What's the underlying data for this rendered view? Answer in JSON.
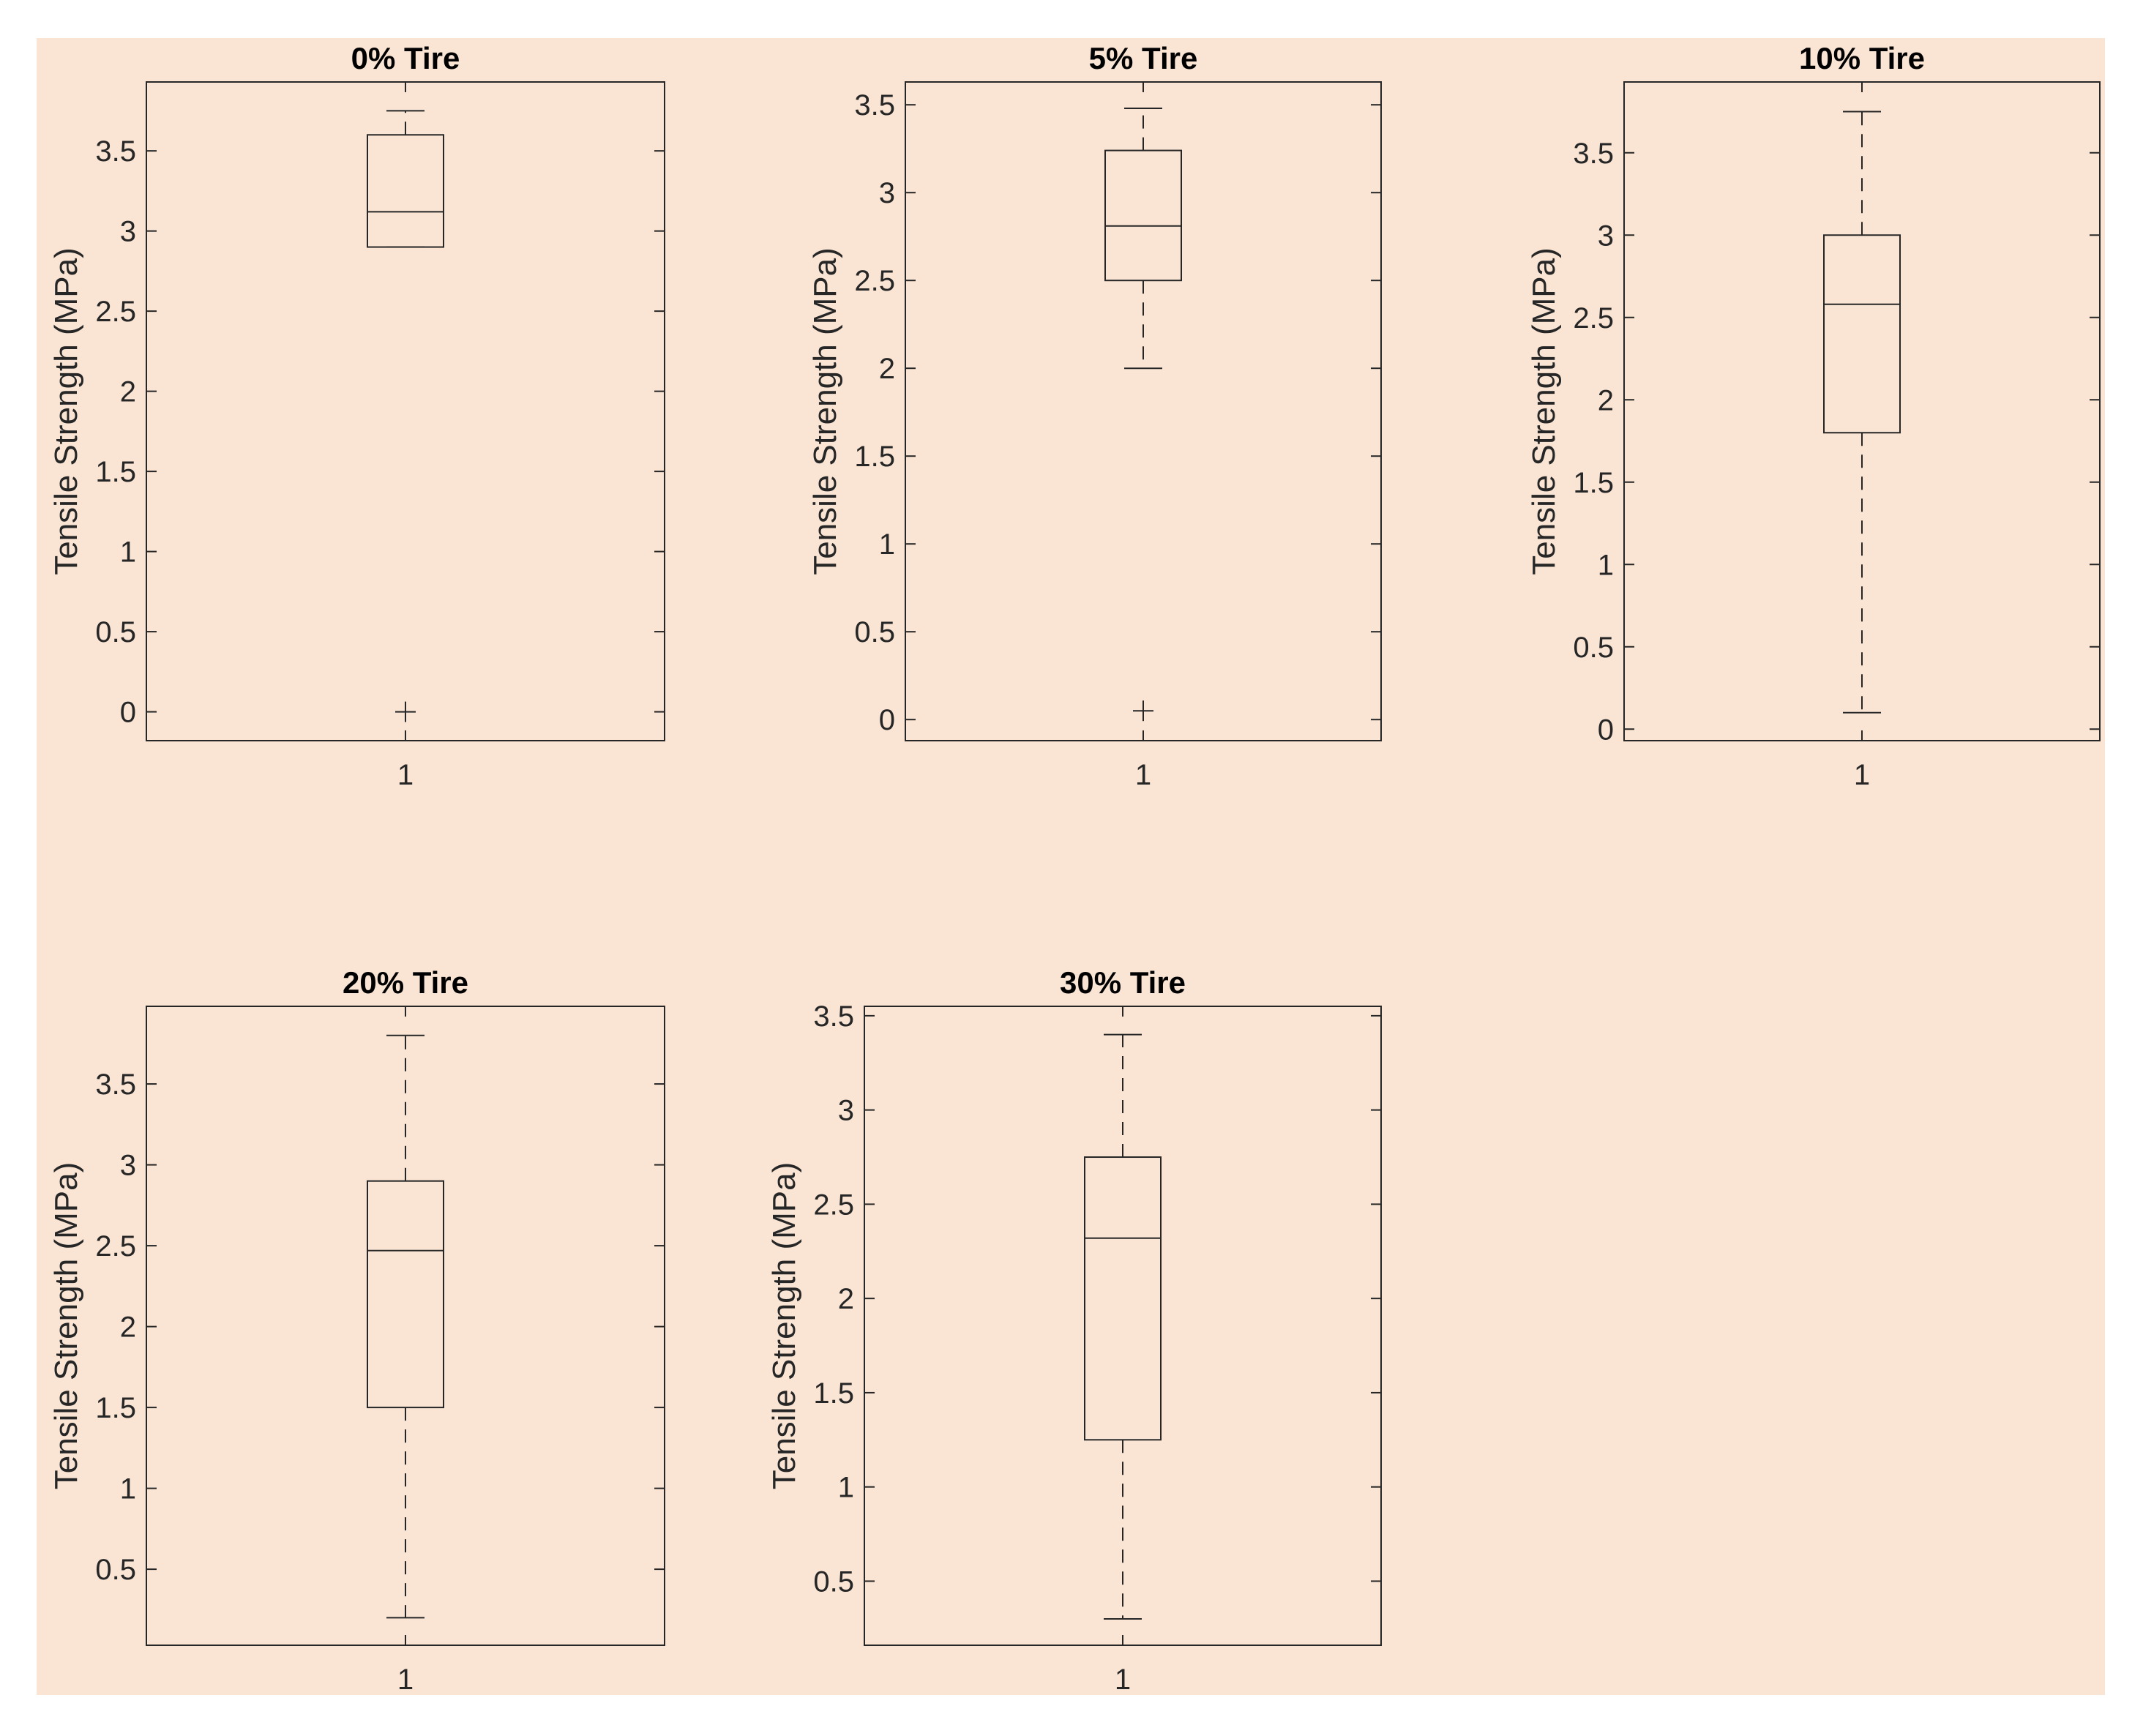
{
  "figure": {
    "background": "#fae5d4",
    "line_color": "#262626"
  },
  "chart_data": [
    {
      "type": "box",
      "title": "0% Tire",
      "ylabel": "Tensile Strength (MPa)",
      "categories": [
        "1"
      ],
      "ylim": [
        -0.18,
        3.93
      ],
      "yticks": [
        0,
        0.5,
        1,
        1.5,
        2,
        2.5,
        3,
        3.5
      ],
      "yticklabels": [
        "0",
        "0.5",
        "1",
        "1.5",
        "2",
        "2.5",
        "3",
        "3.5"
      ],
      "box": {
        "q1": 2.9,
        "median": 3.12,
        "q3": 3.6,
        "whisker_low": 2.9,
        "whisker_high": 3.75
      },
      "outliers": [
        0
      ]
    },
    {
      "type": "box",
      "title": "5% Tire",
      "ylabel": "Tensile Strength (MPa)",
      "categories": [
        "1"
      ],
      "ylim": [
        -0.12,
        3.63
      ],
      "yticks": [
        0,
        0.5,
        1,
        1.5,
        2,
        2.5,
        3,
        3.5
      ],
      "yticklabels": [
        "0",
        "0.5",
        "1",
        "1.5",
        "2",
        "2.5",
        "3",
        "3.5"
      ],
      "box": {
        "q1": 2.5,
        "median": 2.81,
        "q3": 3.24,
        "whisker_low": 2.0,
        "whisker_high": 3.48
      },
      "outliers": [
        0.05
      ]
    },
    {
      "type": "box",
      "title": "10% Tire",
      "ylabel": "Tensile Strength (MPa)",
      "categories": [
        "1"
      ],
      "ylim": [
        -0.07,
        3.93
      ],
      "yticks": [
        0,
        0.5,
        1,
        1.5,
        2,
        2.5,
        3,
        3.5
      ],
      "yticklabels": [
        "0",
        "0.5",
        "1",
        "1.5",
        "2",
        "2.5",
        "3",
        "3.5"
      ],
      "box": {
        "q1": 1.8,
        "median": 2.58,
        "q3": 3.0,
        "whisker_low": 0.1,
        "whisker_high": 3.75
      },
      "outliers": []
    },
    {
      "type": "box",
      "title": "20% Tire",
      "ylabel": "Tensile Strength (MPa)",
      "categories": [
        "1"
      ],
      "ylim": [
        0.03,
        3.98
      ],
      "yticks": [
        0.5,
        1,
        1.5,
        2,
        2.5,
        3,
        3.5
      ],
      "yticklabels": [
        "0.5",
        "1",
        "1.5",
        "2",
        "2.5",
        "3",
        "3.5"
      ],
      "box": {
        "q1": 1.5,
        "median": 2.47,
        "q3": 2.9,
        "whisker_low": 0.2,
        "whisker_high": 3.8
      },
      "outliers": []
    },
    {
      "type": "box",
      "title": "30% Tire",
      "ylabel": "Tensile Strength (MPa)",
      "categories": [
        "1"
      ],
      "ylim": [
        0.16,
        3.55
      ],
      "yticks": [
        0.5,
        1,
        1.5,
        2,
        2.5,
        3,
        3.5
      ],
      "yticklabels": [
        "0.5",
        "1",
        "1.5",
        "2",
        "2.5",
        "3",
        "3.5"
      ],
      "box": {
        "q1": 1.25,
        "median": 2.32,
        "q3": 2.75,
        "whisker_low": 0.3,
        "whisker_high": 3.4
      },
      "outliers": []
    }
  ]
}
